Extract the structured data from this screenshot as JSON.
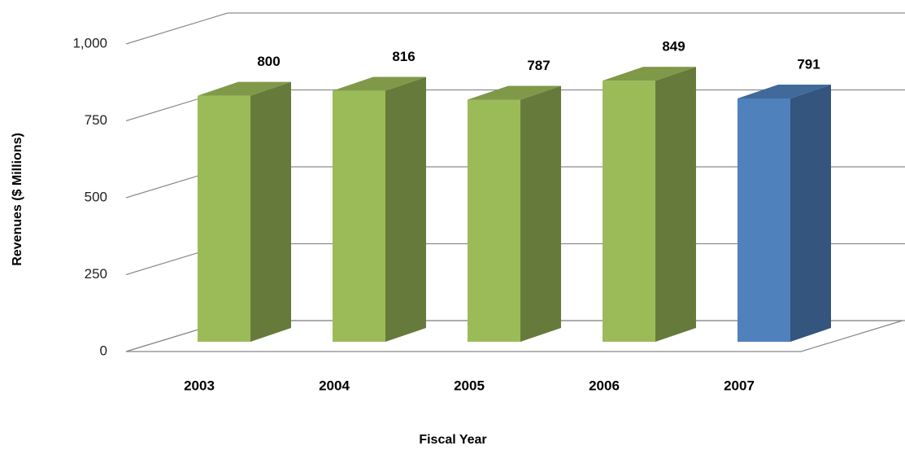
{
  "chart_data": {
    "type": "bar3d",
    "categories": [
      "2003",
      "2004",
      "2005",
      "2006",
      "2007"
    ],
    "values": [
      800,
      816,
      787,
      849,
      791
    ],
    "colors": [
      "#9bbb59",
      "#9bbb59",
      "#9bbb59",
      "#9bbb59",
      "#4f81bd"
    ],
    "ylim": [
      0,
      1000
    ],
    "yticks": [
      0,
      250,
      500,
      750,
      {
        "value": 1000,
        "label": "1,000"
      }
    ],
    "ylabel": "Revenues ($ Millions)",
    "xlabel": "Fiscal Year",
    "grid": true
  }
}
